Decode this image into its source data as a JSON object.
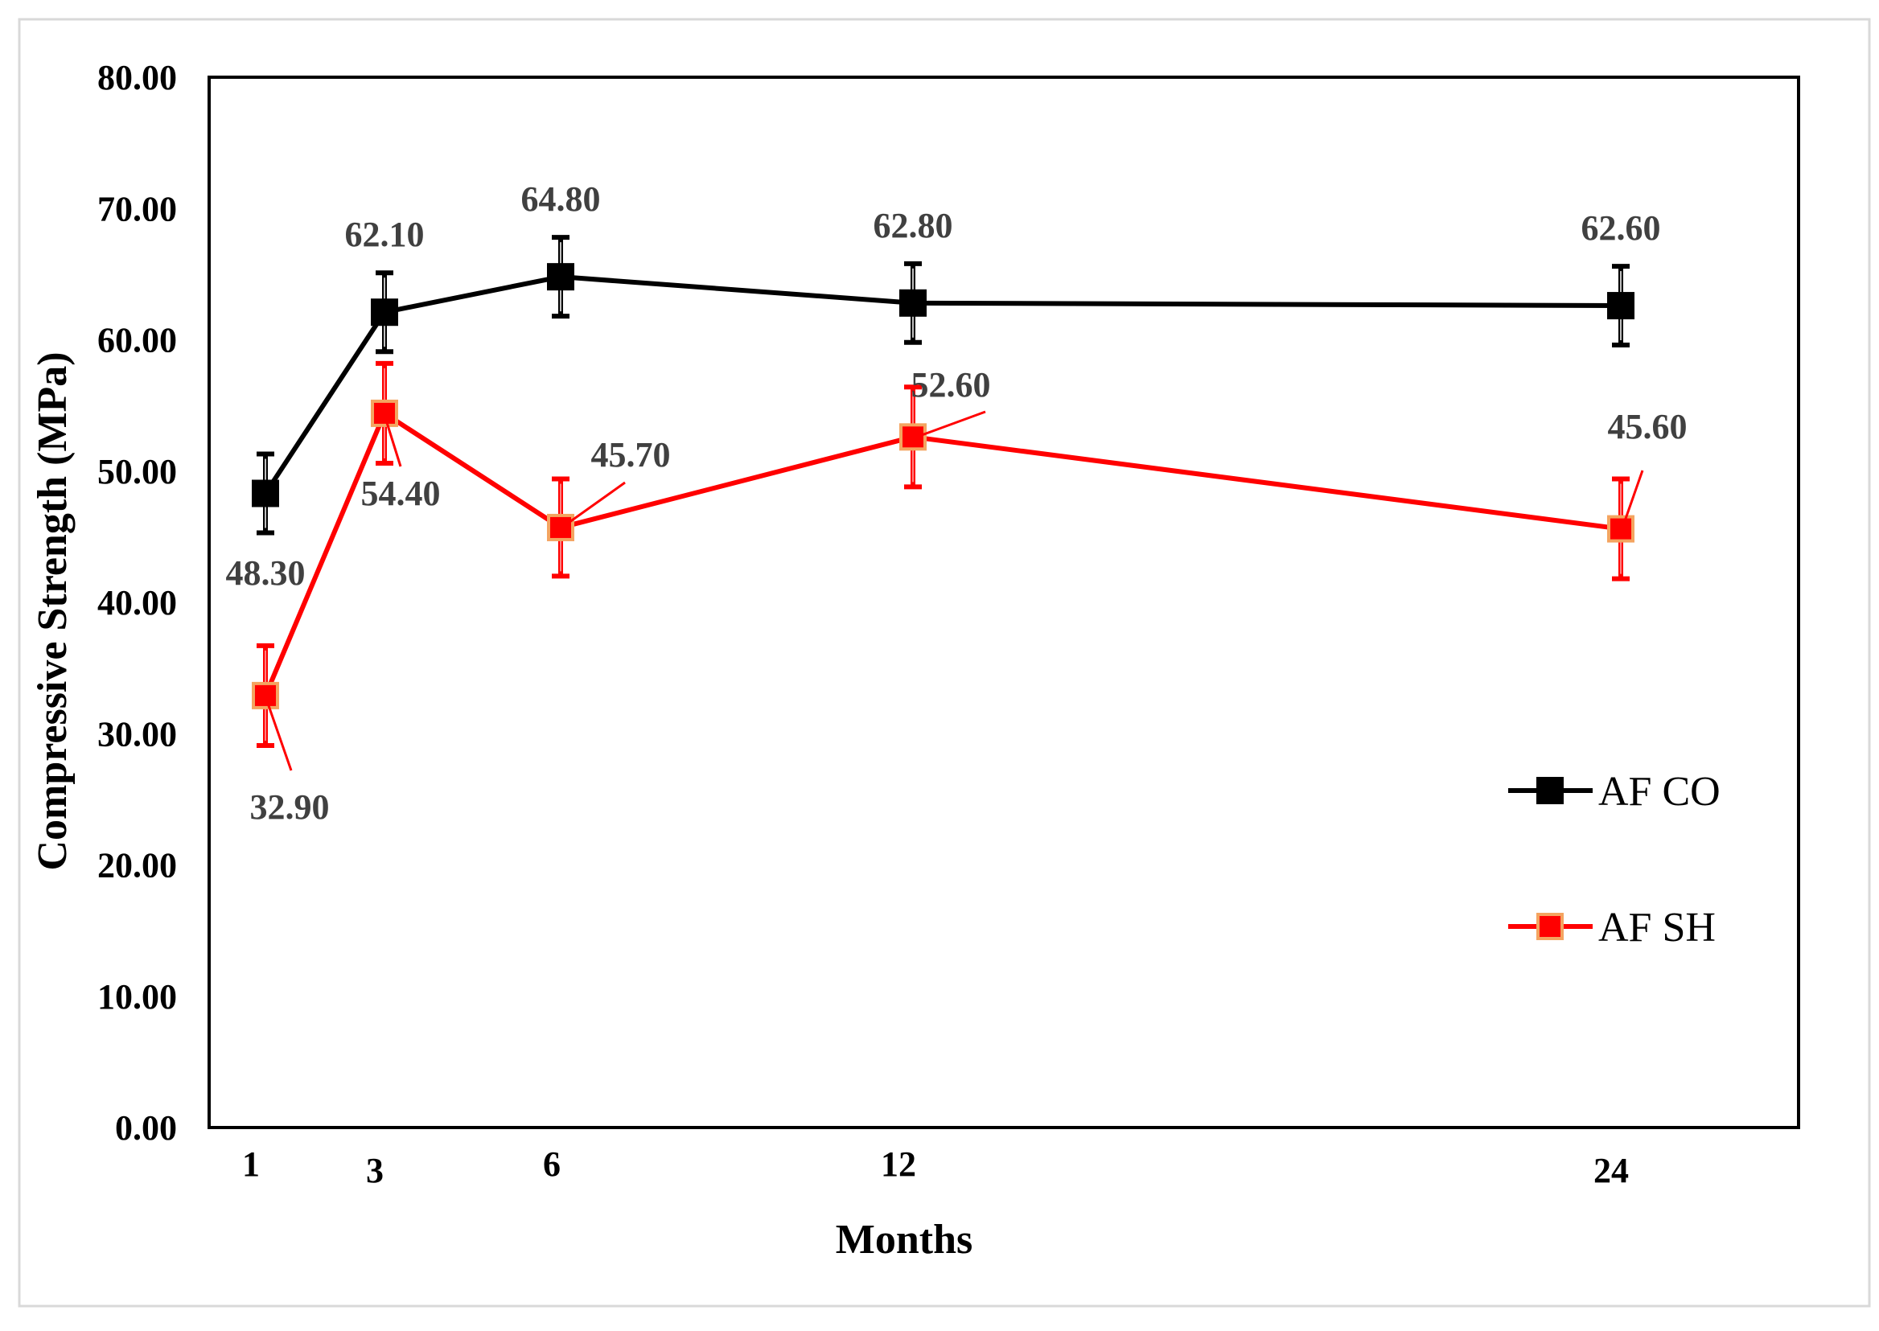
{
  "chart_data": {
    "type": "line",
    "xlabel": "Months",
    "ylabel": "Compressive Strength (MPa)",
    "ylim": [
      0,
      80
    ],
    "y_ticks": [
      0,
      10,
      20,
      30,
      40,
      50,
      60,
      70,
      80
    ],
    "y_tick_labels": [
      "0.00",
      "10.00",
      "20.00",
      "30.00",
      "40.00",
      "50.00",
      "60.00",
      "70.00",
      "80.00"
    ],
    "x": [
      1,
      3,
      6,
      12,
      24
    ],
    "x_tick_labels": [
      "1",
      "3",
      "6",
      "12",
      "24"
    ],
    "grid": false,
    "legend_position": "right",
    "series": [
      {
        "name": "AF CO",
        "color": "#000000",
        "marker_fill": "#000000",
        "marker_edge": "#000000",
        "values": [
          48.3,
          62.1,
          64.8,
          62.8,
          62.6
        ],
        "error": [
          3.0,
          3.0,
          3.0,
          3.0,
          3.0
        ],
        "data_labels": [
          "48.30",
          "62.10",
          "64.80",
          "62.80",
          "62.60"
        ]
      },
      {
        "name": "AF SH",
        "color": "#ff0000",
        "marker_fill": "#ff0000",
        "marker_edge": "#f4a460",
        "values": [
          32.9,
          54.4,
          45.7,
          52.6,
          45.6
        ],
        "error": [
          3.8,
          3.8,
          3.7,
          3.8,
          3.8
        ],
        "data_labels": [
          "32.90",
          "54.40",
          "45.70",
          "52.60",
          "45.60"
        ]
      }
    ]
  }
}
